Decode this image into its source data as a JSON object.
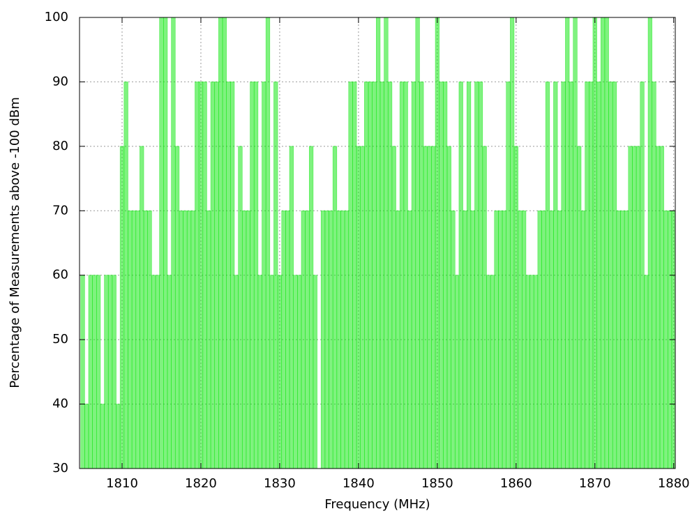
{
  "chart_data": {
    "type": "bar",
    "xlabel": "Frequency (MHz)",
    "ylabel": "Percentage of Measurements above -100 dBm",
    "color": "#00e600",
    "bar_width": 0.5,
    "grid": true,
    "xlim": [
      1804.6,
      1880.2
    ],
    "ylim": [
      30,
      100
    ],
    "xticks": [
      1810,
      1820,
      1830,
      1840,
      1850,
      1860,
      1870,
      1880
    ],
    "yticks": [
      30,
      40,
      50,
      60,
      70,
      80,
      90,
      100
    ],
    "x": [
      1805.0,
      1805.5,
      1806.0,
      1806.5,
      1807.0,
      1807.5,
      1808.0,
      1808.5,
      1809.0,
      1809.5,
      1810.0,
      1810.5,
      1811.0,
      1811.5,
      1812.0,
      1812.5,
      1813.0,
      1813.5,
      1814.0,
      1814.5,
      1815.0,
      1815.5,
      1816.0,
      1816.5,
      1817.0,
      1817.5,
      1818.0,
      1818.5,
      1819.0,
      1819.5,
      1820.0,
      1820.5,
      1821.0,
      1821.5,
      1822.0,
      1822.5,
      1823.0,
      1823.5,
      1824.0,
      1824.5,
      1825.0,
      1825.5,
      1826.0,
      1826.5,
      1827.0,
      1827.5,
      1828.0,
      1828.5,
      1829.0,
      1829.5,
      1830.0,
      1830.5,
      1831.0,
      1831.5,
      1832.0,
      1832.5,
      1833.0,
      1833.5,
      1834.0,
      1834.5,
      1835.0,
      1835.5,
      1836.0,
      1836.5,
      1837.0,
      1837.5,
      1838.0,
      1838.5,
      1839.0,
      1839.5,
      1840.0,
      1840.5,
      1841.0,
      1841.5,
      1842.0,
      1842.5,
      1843.0,
      1843.5,
      1844.0,
      1844.5,
      1845.0,
      1845.5,
      1846.0,
      1846.5,
      1847.0,
      1847.5,
      1848.0,
      1848.5,
      1849.0,
      1849.5,
      1850.0,
      1850.5,
      1851.0,
      1851.5,
      1852.0,
      1852.5,
      1853.0,
      1853.5,
      1854.0,
      1854.5,
      1855.0,
      1855.5,
      1856.0,
      1856.5,
      1857.0,
      1857.5,
      1858.0,
      1858.5,
      1859.0,
      1859.5,
      1860.0,
      1860.5,
      1861.0,
      1861.5,
      1862.0,
      1862.5,
      1863.0,
      1863.5,
      1864.0,
      1864.5,
      1865.0,
      1865.5,
      1866.0,
      1866.5,
      1867.0,
      1867.5,
      1868.0,
      1868.5,
      1869.0,
      1869.5,
      1870.0,
      1870.5,
      1871.0,
      1871.5,
      1872.0,
      1872.5,
      1873.0,
      1873.5,
      1874.0,
      1874.5,
      1875.0,
      1875.5,
      1876.0,
      1876.5,
      1877.0,
      1877.5,
      1878.0,
      1878.5,
      1879.0,
      1879.5,
      1880.0
    ],
    "values": [
      60,
      40,
      60,
      60,
      60,
      40,
      60,
      60,
      60,
      40,
      80,
      90,
      70,
      70,
      70,
      80,
      70,
      70,
      60,
      60,
      100,
      100,
      60,
      100,
      80,
      70,
      70,
      70,
      70,
      90,
      90,
      90,
      70,
      90,
      90,
      100,
      100,
      90,
      90,
      60,
      80,
      70,
      70,
      90,
      90,
      60,
      90,
      100,
      60,
      90,
      60,
      70,
      70,
      80,
      60,
      60,
      70,
      70,
      80,
      60,
      30,
      70,
      70,
      70,
      80,
      70,
      70,
      70,
      90,
      90,
      80,
      80,
      90,
      90,
      90,
      100,
      90,
      100,
      90,
      80,
      70,
      90,
      90,
      70,
      90,
      100,
      90,
      80,
      80,
      80,
      100,
      90,
      90,
      80,
      70,
      60,
      90,
      70,
      90,
      70,
      90,
      90,
      80,
      60,
      60,
      70,
      70,
      70,
      90,
      100,
      80,
      70,
      70,
      60,
      60,
      60,
      70,
      70,
      90,
      70,
      90,
      70,
      90,
      100,
      90,
      100,
      80,
      70,
      90,
      90,
      100,
      90,
      100,
      100,
      90,
      90,
      70,
      70,
      70,
      80,
      80,
      80,
      90,
      60,
      100,
      90,
      80,
      80,
      70,
      70,
      70
    ]
  }
}
